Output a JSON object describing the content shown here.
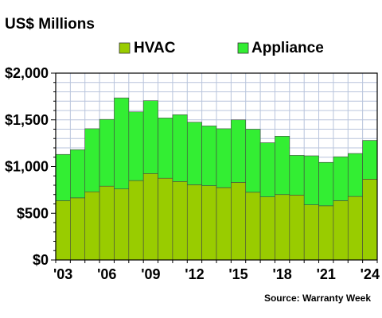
{
  "chart_data": {
    "type": "bar",
    "stacked": true,
    "title": "US$ Millions",
    "source": "Source: Warranty Week",
    "x": [
      2003,
      2004,
      2005,
      2006,
      2007,
      2008,
      2009,
      2010,
      2011,
      2012,
      2013,
      2014,
      2015,
      2016,
      2017,
      2018,
      2019,
      2020,
      2021,
      2022,
      2023,
      2024
    ],
    "x_tick_labels": [
      "'03",
      "'06",
      "'09",
      "'12",
      "'15",
      "'18",
      "'21",
      "'24"
    ],
    "x_tick_years": [
      2003,
      2006,
      2009,
      2012,
      2015,
      2018,
      2021,
      2024
    ],
    "series": [
      {
        "name": "HVAC",
        "color": "#99cc00",
        "values": [
          635,
          665,
          730,
          790,
          760,
          850,
          925,
          875,
          840,
          805,
          795,
          775,
          830,
          725,
          675,
          700,
          695,
          590,
          580,
          635,
          680,
          865
        ]
      },
      {
        "name": "Appliance",
        "color": "#33ee33",
        "values": [
          495,
          515,
          675,
          715,
          975,
          735,
          780,
          645,
          715,
          670,
          640,
          630,
          670,
          675,
          580,
          625,
          425,
          525,
          465,
          470,
          460,
          415
        ]
      }
    ],
    "ylim": [
      0,
      2000
    ],
    "y_ticks": [
      0,
      500,
      1000,
      1500,
      2000
    ],
    "y_tick_labels": [
      "$0",
      "$500",
      "$1,000",
      "$1,500",
      "$2,000"
    ],
    "grid": true,
    "legend_position": "top-center",
    "xlabel": "",
    "ylabel": ""
  }
}
